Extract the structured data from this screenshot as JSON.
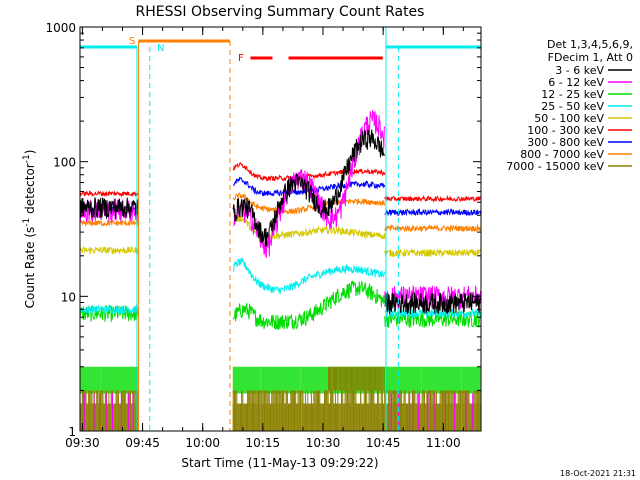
{
  "chart_data": {
    "type": "line",
    "title": "RHESSI Observing Summary Count Rates",
    "xlabel": "Start Time (11-May-13 09:29:22)",
    "ylabel_main": "Count Rate (s",
    "ylabel_sup1": "-1",
    "ylabel_mid": " detector",
    "ylabel_sup2": "-1",
    "ylabel_end": ")",
    "x_range_minutes": [
      0,
      100
    ],
    "y_range": [
      1,
      1000
    ],
    "y_scale": "log",
    "x_ticks": [
      {
        "t": 0.6,
        "label": "09:30"
      },
      {
        "t": 15.6,
        "label": "09:45"
      },
      {
        "t": 30.6,
        "label": "10:00"
      },
      {
        "t": 45.6,
        "label": "10:15"
      },
      {
        "t": 60.6,
        "label": "10:30"
      },
      {
        "t": 75.6,
        "label": "10:45"
      },
      {
        "t": 90.6,
        "label": "11:00"
      }
    ],
    "y_ticks": [
      {
        "v": 1,
        "label": "1"
      },
      {
        "v": 10,
        "label": "10"
      },
      {
        "v": 100,
        "label": "100"
      },
      {
        "v": 1000,
        "label": "1000"
      }
    ],
    "legend_header": [
      "Det 1,3,4,5,6,9,",
      "FDecim 1, Att 0"
    ],
    "series": [
      {
        "name": "3 - 6 keV",
        "color": "#000000"
      },
      {
        "name": "6 - 12 keV",
        "color": "#ff00ff"
      },
      {
        "name": "12 - 25 keV",
        "color": "#00dd00"
      },
      {
        "name": "25 - 50 keV",
        "color": "#00eeee"
      },
      {
        "name": "50 - 100 keV",
        "color": "#d4c800"
      },
      {
        "name": "100 - 300 keV",
        "color": "#ff0000"
      },
      {
        "name": "300 - 800 keV",
        "color": "#0000ff"
      },
      {
        "name": "800 - 7000 keV",
        "color": "#ff8000"
      },
      {
        "name": "7000 - 15000 keV",
        "color": "#8b8000"
      }
    ],
    "flags": {
      "saa_label": "S",
      "night_label": "N",
      "flare_label": "F"
    },
    "timestamp": "18-Oct-2021 21:31"
  }
}
